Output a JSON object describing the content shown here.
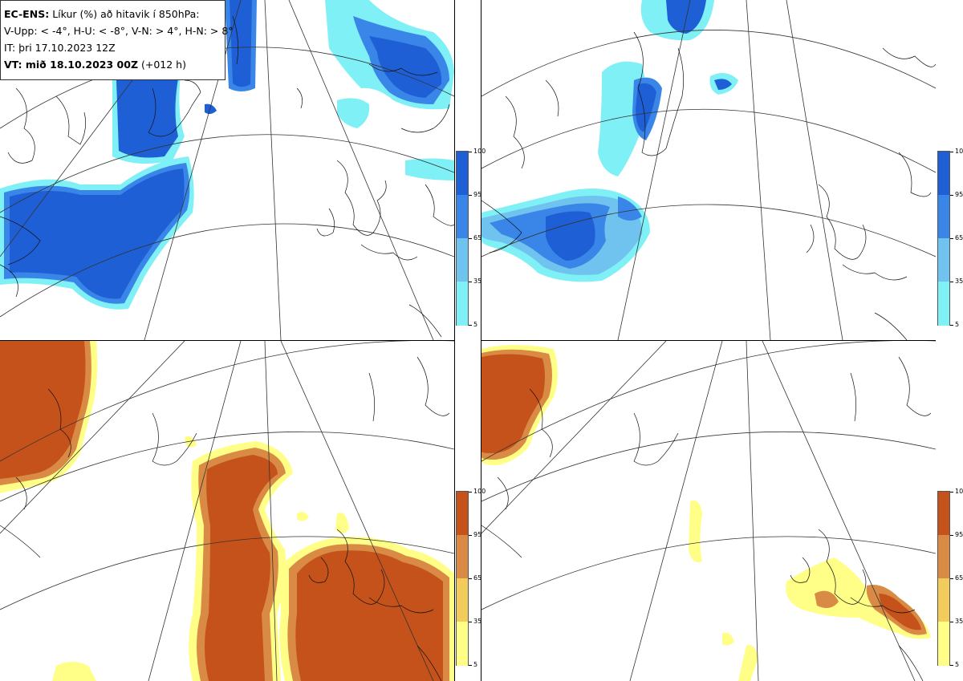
{
  "info": {
    "model": "EC-ENS:",
    "title": "Líkur (%) að hitavik í 850hPa:",
    "thresholds": "V-Upp: < -4°, H-U: < -8°, V-N: > 4°, H-N: > 8°",
    "it_label": "IT: þri 17.10.2023 12Z",
    "vt_label": "VT: mið 18.10.2023 00Z",
    "vt_lead": "(+012 h)"
  },
  "panels": [
    {
      "id": "top-left",
      "quantity": "V-Upp"
    },
    {
      "id": "top-right",
      "quantity": "H-U"
    },
    {
      "id": "bottom-left",
      "quantity": "V-N"
    },
    {
      "id": "bottom-right",
      "quantity": "H-N"
    }
  ],
  "colorbar_cold": {
    "ticks": [
      "100",
      "95",
      "65",
      "35",
      "5"
    ],
    "colors": [
      "#1f5fd6",
      "#3a86e8",
      "#6fc3ee",
      "#7ff0f5"
    ]
  },
  "colorbar_warm": {
    "ticks": [
      "100",
      "95",
      "65",
      "35",
      "5"
    ],
    "colors": [
      "#c4521a",
      "#d98b45",
      "#f2cc5a",
      "#ffff88"
    ]
  }
}
